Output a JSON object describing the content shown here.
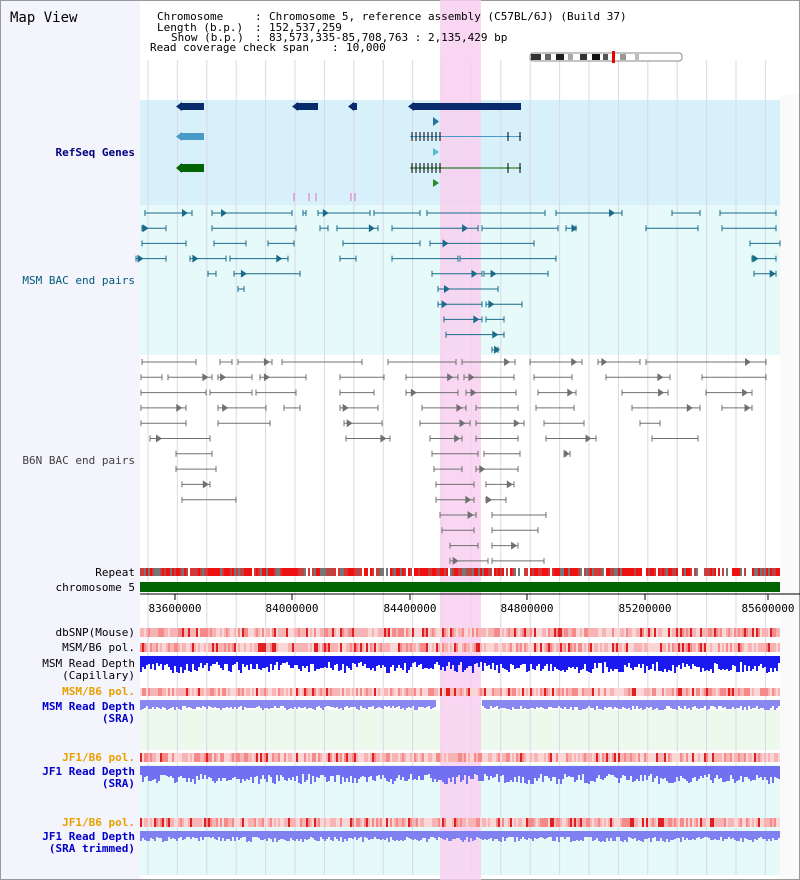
{
  "title": "Map View",
  "info": {
    "chromosome_key": "Chromosome",
    "chromosome_val": "Chromosome 5, reference assembly (C57BL/6J) (Build 37)",
    "length_key": "Length (b.p.)",
    "length_val": "152,537,259",
    "show_key": "Show (b.p.)",
    "show_val": "83,573,335-85,708,763 : 2,135,429 bp",
    "coverage_key": "Read coverage check span",
    "coverage_val": "10,000"
  },
  "tracks": {
    "refseq": "RefSeq Genes",
    "msm_bac": "MSM BAC end pairs",
    "b6n_bac": "B6N BAC end pairs",
    "repeat": "Repeat",
    "chromosome": "chromosome 5",
    "dbsnp": "dbSNP(Mouse)",
    "msm_b6_pol_1": "MSM/B6 pol.",
    "msm_read_depth_cap": "MSM Read Depth\n(Capillary)",
    "msm_b6_pol_2": "MSM/B6 pol.",
    "msm_read_depth_sra": "MSM Read Depth\n(SRA)",
    "jf1_b6_pol_1": "JF1/B6 pol.",
    "jf1_read_depth_sra": "JF1 Read Depth\n(SRA)",
    "jf1_b6_pol_2": "JF1/B6 pol.",
    "jf1_read_depth_trimmed": "JF1 Read Depth\n(SRA trimmed)"
  },
  "axis": {
    "ticks": [
      "83600000",
      "84000000",
      "84400000",
      "84800000",
      "85200000",
      "85600000"
    ]
  },
  "colors": {
    "refseq_bg": "#d8f0fa",
    "bac_bg": "#e6fafa",
    "highlight": "#f8d0f0",
    "navy": "#0a2a6e",
    "teal": "#1a6b8a",
    "grey_pair": "#707070",
    "green": "#006400",
    "repeat_red": "#ee1111",
    "depth_dark": "#1a1af0",
    "depth_light": "#7070f0",
    "label_navy": "#000080",
    "label_teal": "#005a7a",
    "label_orange": "#e8a000",
    "label_blue": "#0000c8"
  }
}
